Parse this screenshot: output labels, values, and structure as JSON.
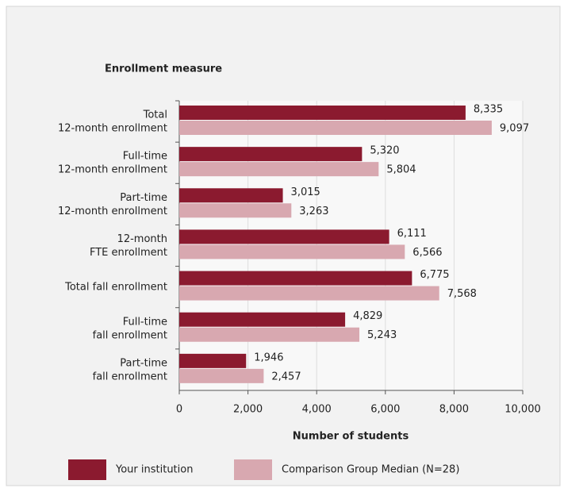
{
  "chart_data": {
    "type": "bar",
    "orientation": "horizontal",
    "title": "Enrollment measure",
    "x_label": "Number of students",
    "categories": [
      [
        "Total",
        "12-month enrollment"
      ],
      [
        "Full-time",
        "12-month enrollment"
      ],
      [
        "Part-time",
        "12-month enrollment"
      ],
      [
        "12-month",
        "FTE enrollment"
      ],
      [
        "Total fall enrollment"
      ],
      [
        "Full-time",
        "fall enrollment"
      ],
      [
        "Part-time",
        "fall enrollment"
      ]
    ],
    "series": [
      {
        "name": "Your institution",
        "color": "#8b1a2f",
        "values": [
          8335,
          5320,
          3015,
          6111,
          6775,
          4829,
          1946
        ],
        "value_labels": [
          "8,335",
          "5,320",
          "3,015",
          "6,111",
          "6,775",
          "4,829",
          "1,946"
        ]
      },
      {
        "name": "Comparison Group Median (N=28)",
        "color": "#d8a8b0",
        "values": [
          9097,
          5804,
          3263,
          6566,
          7568,
          5243,
          2457
        ],
        "value_labels": [
          "9,097",
          "5,804",
          "3,263",
          "6,566",
          "7,568",
          "5,243",
          "2,457"
        ]
      }
    ],
    "xlim": [
      0,
      10000
    ],
    "xticks": [
      0,
      {
        "value": 2000,
        "label": "2,000"
      },
      {
        "value": 4000,
        "label": "4,000"
      },
      {
        "value": 6000,
        "label": "6,000"
      },
      {
        "value": 8000,
        "label": "8,000"
      },
      {
        "value": 10000,
        "label": "10,000"
      }
    ],
    "grid": true,
    "legend": "bottom"
  }
}
